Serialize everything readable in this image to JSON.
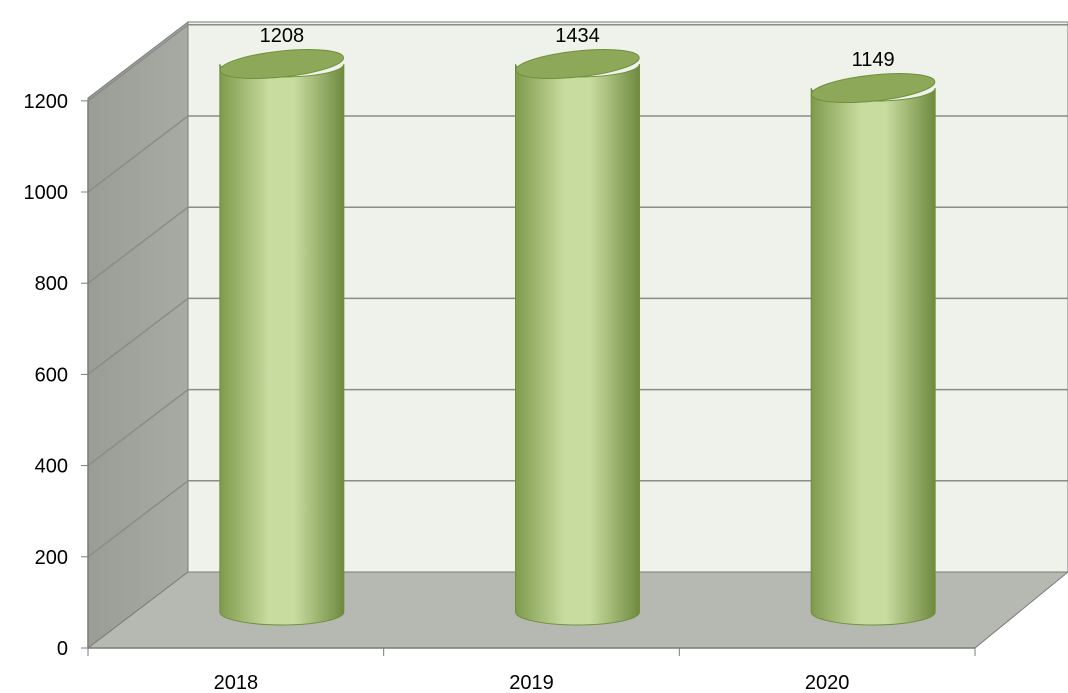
{
  "chart_data": {
    "type": "bar",
    "style": "3d-cylinder",
    "title": "",
    "xlabel": "",
    "ylabel": "",
    "categories": [
      "2018",
      "2019",
      "2020"
    ],
    "values": [
      1208,
      1434,
      1149
    ],
    "data_labels": [
      "1208",
      "1434",
      "1149"
    ],
    "ylim": [
      0,
      1200
    ],
    "yticks": [
      "0",
      "200",
      "400",
      "600",
      "800",
      "1000",
      "1200"
    ],
    "grid": true,
    "legend": "none",
    "colors": {
      "bar_light": "#c8dca0",
      "bar_dark": "#7f9a4c",
      "bar_top": "#8ea85a",
      "bar_outline": "#6f8f3a",
      "back_wall": "#eef2ea",
      "side_wall": "#a4a6a0",
      "floor": "#b6b8b2",
      "gridline": "#8a8c88",
      "axis": "#7a7c78"
    }
  }
}
